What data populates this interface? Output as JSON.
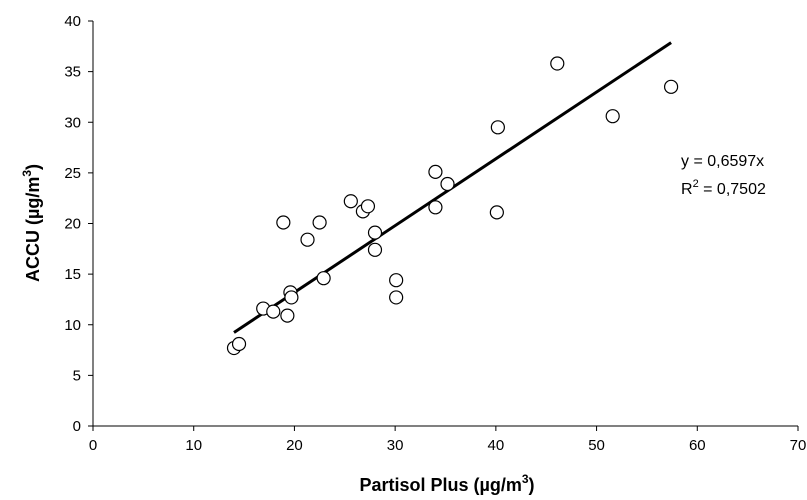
{
  "chart_data": {
    "type": "scatter",
    "title": "",
    "xlabel": "Partisol Plus (µg/m",
    "xlabel_sup": "3",
    "xlabel_close": ")",
    "ylabel": "ACCU (µg/m",
    "ylabel_sup": "3",
    "ylabel_close": ")",
    "xlim": [
      0,
      70
    ],
    "ylim": [
      0,
      40
    ],
    "x_ticks": [
      0,
      10,
      20,
      30,
      40,
      50,
      60,
      70
    ],
    "y_ticks": [
      0,
      5,
      10,
      15,
      20,
      25,
      30,
      35,
      40
    ],
    "grid": false,
    "legend": "none",
    "series": [
      {
        "marker": "open-circle",
        "points": [
          {
            "x": 14.0,
            "y": 7.7
          },
          {
            "x": 14.5,
            "y": 8.1
          },
          {
            "x": 16.9,
            "y": 11.6
          },
          {
            "x": 17.9,
            "y": 11.3
          },
          {
            "x": 18.9,
            "y": 20.1
          },
          {
            "x": 19.3,
            "y": 10.9
          },
          {
            "x": 19.6,
            "y": 13.2
          },
          {
            "x": 19.7,
            "y": 12.7
          },
          {
            "x": 21.3,
            "y": 18.4
          },
          {
            "x": 22.5,
            "y": 20.1
          },
          {
            "x": 22.9,
            "y": 14.6
          },
          {
            "x": 25.6,
            "y": 22.2
          },
          {
            "x": 26.8,
            "y": 21.2
          },
          {
            "x": 27.3,
            "y": 21.7
          },
          {
            "x": 28.0,
            "y": 19.1
          },
          {
            "x": 28.0,
            "y": 17.4
          },
          {
            "x": 30.1,
            "y": 14.4
          },
          {
            "x": 30.1,
            "y": 12.7
          },
          {
            "x": 34.0,
            "y": 25.1
          },
          {
            "x": 34.0,
            "y": 21.6
          },
          {
            "x": 35.2,
            "y": 23.9
          },
          {
            "x": 40.1,
            "y": 21.1
          },
          {
            "x": 40.2,
            "y": 29.5
          },
          {
            "x": 46.1,
            "y": 35.8
          },
          {
            "x": 51.6,
            "y": 30.6
          },
          {
            "x": 57.4,
            "y": 33.5
          }
        ]
      }
    ],
    "trendline": {
      "type": "linear-through-origin",
      "slope": 0.6597,
      "x_range": [
        14.0,
        57.4
      ]
    },
    "annotations": {
      "equation": "y = 0,6597x",
      "r2_prefix": "R",
      "r2_sup": "2",
      "r2_value": " = 0,7502"
    },
    "colors": {
      "axis": "#000000",
      "marker_stroke": "#000000",
      "marker_fill": "#ffffff",
      "trendline": "#000000"
    }
  }
}
